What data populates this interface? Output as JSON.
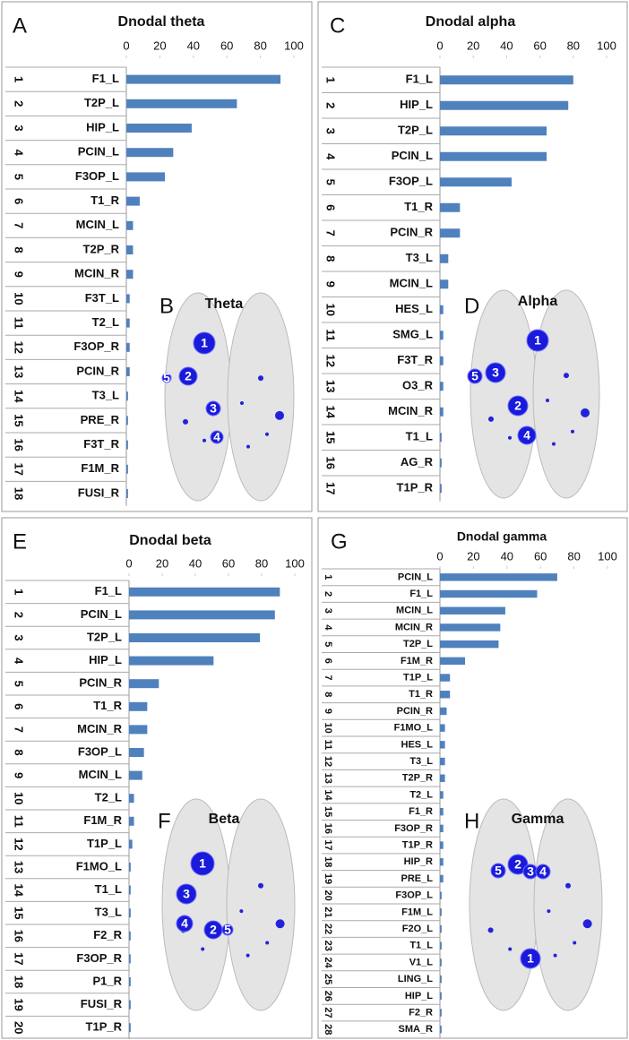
{
  "chart_data": [
    {
      "type": "bar",
      "panel": "A",
      "title": "Dnodal theta",
      "categories": [
        "F1_L",
        "T2P_L",
        "HIP_L",
        "PCIN_L",
        "F3OP_L",
        "T1_R",
        "MCIN_L",
        "T2P_R",
        "MCIN_R",
        "F3T_L",
        "T2_L",
        "F3OP_R",
        "PCIN_R",
        "T3_L",
        "PRE_R",
        "F3T_R",
        "F1M_R",
        "FUSI_R"
      ],
      "ranks": [
        1,
        2,
        3,
        4,
        5,
        6,
        7,
        8,
        9,
        10,
        11,
        12,
        13,
        14,
        15,
        16,
        17,
        18
      ],
      "values": [
        92,
        66,
        39,
        28,
        23,
        8,
        4,
        4,
        4,
        2,
        2,
        2,
        2,
        1,
        1,
        1,
        1,
        1
      ],
      "color": "#4f81bd",
      "xlim": [
        0,
        100
      ],
      "xticks": [
        0,
        20,
        40,
        60,
        80,
        100
      ],
      "brain": {
        "panel": "B",
        "title": "Theta",
        "markers": [
          1,
          2,
          3,
          4,
          5
        ]
      }
    },
    {
      "type": "bar",
      "panel": "C",
      "title": "Dnodal alpha",
      "categories": [
        "F1_L",
        "HIP_L",
        "T2P_L",
        "PCIN_L",
        "F3OP_L",
        "T1_R",
        "PCIN_R",
        "T3_L",
        "MCIN_L",
        "HES_L",
        "SMG_L",
        "F3T_R",
        "O3_R",
        "MCIN_R",
        "T1_L",
        "AG_R",
        "T1P_R"
      ],
      "ranks": [
        1,
        2,
        3,
        4,
        5,
        6,
        7,
        8,
        9,
        10,
        11,
        12,
        13,
        14,
        15,
        16,
        17
      ],
      "values": [
        80,
        77,
        64,
        64,
        43,
        12,
        12,
        5,
        5,
        2,
        2,
        2,
        2,
        2,
        1,
        1,
        1
      ],
      "color": "#4f81bd",
      "xlim": [
        0,
        100
      ],
      "xticks": [
        0,
        20,
        40,
        60,
        80,
        100
      ],
      "brain": {
        "panel": "D",
        "title": "Alpha",
        "markers": [
          1,
          2,
          3,
          4,
          5
        ]
      }
    },
    {
      "type": "bar",
      "panel": "E",
      "title": "Dnodal beta",
      "categories": [
        "F1_L",
        "PCIN_L",
        "T2P_L",
        "HIP_L",
        "PCIN_R",
        "T1_R",
        "MCIN_R",
        "F3OP_L",
        "MCIN_L",
        "T2_L",
        "F1M_R",
        "T1P_L",
        "F1MO_L",
        "T1_L",
        "T3_L",
        "F2_R",
        "F3OP_R",
        "P1_R",
        "FUSI_R",
        "T1P_R"
      ],
      "ranks": [
        1,
        2,
        3,
        4,
        5,
        6,
        7,
        8,
        9,
        10,
        11,
        12,
        13,
        14,
        15,
        16,
        17,
        18,
        19,
        20
      ],
      "values": [
        91,
        88,
        79,
        51,
        18,
        11,
        11,
        9,
        8,
        3,
        3,
        2,
        1,
        1,
        1,
        1,
        1,
        1,
        1,
        1
      ],
      "color": "#4f81bd",
      "xlim": [
        0,
        100
      ],
      "xticks": [
        0,
        20,
        40,
        60,
        80,
        100
      ],
      "brain": {
        "panel": "F",
        "title": "Beta",
        "markers": [
          1,
          2,
          3,
          4,
          5
        ]
      }
    },
    {
      "type": "bar",
      "panel": "G",
      "title": "Dnodal gamma",
      "categories": [
        "PCIN_L",
        "F1_L",
        "MCIN_L",
        "MCIN_R",
        "T2P_L",
        "F1M_R",
        "T1P_L",
        "T1_R",
        "PCIN_R",
        "F1MO_L",
        "HES_L",
        "T3_L",
        "T2P_R",
        "T2_L",
        "F1_R",
        "F3OP_R",
        "T1P_R",
        "HIP_R",
        "PRE_L",
        "F3OP_L",
        "F1M_L",
        "F2O_L",
        "T1_L",
        "V1_L",
        "LING_L",
        "HIP_L",
        "F2_R",
        "SMA_R"
      ],
      "ranks": [
        1,
        2,
        3,
        4,
        5,
        6,
        7,
        8,
        9,
        10,
        11,
        12,
        13,
        14,
        15,
        16,
        17,
        18,
        19,
        20,
        21,
        22,
        23,
        24,
        25,
        26,
        27,
        28
      ],
      "values": [
        70,
        58,
        39,
        36,
        35,
        15,
        6,
        6,
        4,
        3,
        3,
        3,
        3,
        2,
        2,
        2,
        2,
        2,
        2,
        1,
        1,
        1,
        1,
        1,
        1,
        1,
        1,
        1
      ],
      "color": "#4f81bd",
      "xlim": [
        0,
        100
      ],
      "xticks": [
        0,
        20,
        40,
        60,
        80,
        100
      ],
      "brain": {
        "panel": "H",
        "title": "Gamma",
        "markers": [
          1,
          2,
          3,
          4,
          5
        ]
      }
    }
  ]
}
